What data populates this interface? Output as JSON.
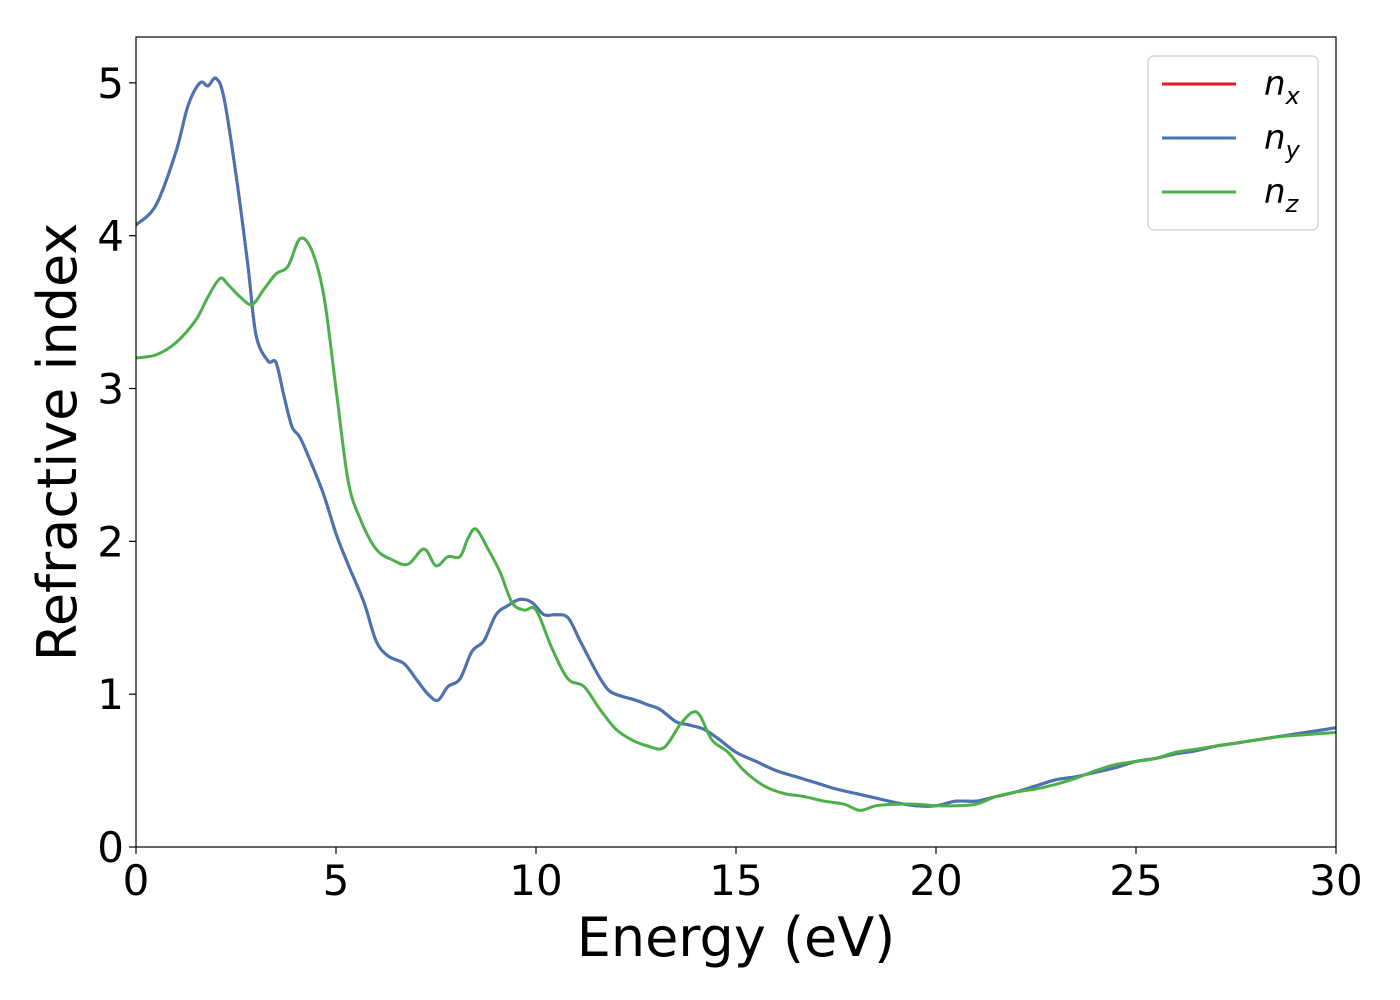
{
  "chart_data": {
    "type": "line",
    "xlabel": "Energy (eV)",
    "ylabel": "Refractive index",
    "xlim": [
      0,
      30
    ],
    "ylim": [
      0,
      5.3
    ],
    "grid": false,
    "legend_placement": "top-right",
    "x_ticks": [
      "0",
      "5",
      "10",
      "15",
      "20",
      "25",
      "30"
    ],
    "y_ticks": [
      "0",
      "1",
      "2",
      "3",
      "4",
      "5"
    ],
    "series": [
      {
        "name": "n",
        "subscript": "x",
        "color": "#e41a1c",
        "x": [
          0,
          0.5,
          1.0,
          1.3,
          1.6,
          1.8,
          2.0,
          2.2,
          2.5,
          2.8,
          3.0,
          3.3,
          3.5,
          3.7,
          3.9,
          4.1,
          4.4,
          4.7,
          5.0,
          5.3,
          5.7,
          6.0,
          6.3,
          6.7,
          7.0,
          7.3,
          7.55,
          7.8,
          8.1,
          8.4,
          8.7,
          9.0,
          9.3,
          9.6,
          9.9,
          10.2,
          10.5,
          10.8,
          11.1,
          11.5,
          11.8,
          12.1,
          12.5,
          12.8,
          13.1,
          13.5,
          13.8,
          14.2,
          14.6,
          15.0,
          15.5,
          16.0,
          16.5,
          17.0,
          17.5,
          18.0,
          18.5,
          19.0,
          19.5,
          20.0,
          20.5,
          21.0,
          21.5,
          22.0,
          22.5,
          23.0,
          23.5,
          24.0,
          24.5,
          25.0,
          25.5,
          26.0,
          26.5,
          27.0,
          27.5,
          28.0,
          28.5,
          29.0,
          29.5,
          30.0
        ],
        "y": [
          4.07,
          4.2,
          4.55,
          4.85,
          5.0,
          4.98,
          5.03,
          4.9,
          4.4,
          3.8,
          3.35,
          3.18,
          3.17,
          2.95,
          2.75,
          2.68,
          2.5,
          2.3,
          2.05,
          1.85,
          1.6,
          1.35,
          1.25,
          1.2,
          1.1,
          1.0,
          0.96,
          1.05,
          1.1,
          1.28,
          1.35,
          1.52,
          1.58,
          1.62,
          1.6,
          1.52,
          1.52,
          1.5,
          1.35,
          1.15,
          1.03,
          0.99,
          0.96,
          0.93,
          0.9,
          0.82,
          0.8,
          0.77,
          0.7,
          0.62,
          0.56,
          0.5,
          0.46,
          0.42,
          0.38,
          0.35,
          0.32,
          0.29,
          0.27,
          0.27,
          0.3,
          0.3,
          0.33,
          0.36,
          0.4,
          0.44,
          0.46,
          0.49,
          0.52,
          0.56,
          0.58,
          0.61,
          0.63,
          0.66,
          0.68,
          0.7,
          0.72,
          0.74,
          0.76,
          0.78
        ]
      },
      {
        "name": "n",
        "subscript": "y",
        "color": "#4575b4",
        "x": [
          0,
          0.5,
          1.0,
          1.3,
          1.6,
          1.8,
          2.0,
          2.2,
          2.5,
          2.8,
          3.0,
          3.3,
          3.5,
          3.7,
          3.9,
          4.1,
          4.4,
          4.7,
          5.0,
          5.3,
          5.7,
          6.0,
          6.3,
          6.7,
          7.0,
          7.3,
          7.55,
          7.8,
          8.1,
          8.4,
          8.7,
          9.0,
          9.3,
          9.6,
          9.9,
          10.2,
          10.5,
          10.8,
          11.1,
          11.5,
          11.8,
          12.1,
          12.5,
          12.8,
          13.1,
          13.5,
          13.8,
          14.2,
          14.6,
          15.0,
          15.5,
          16.0,
          16.5,
          17.0,
          17.5,
          18.0,
          18.5,
          19.0,
          19.5,
          20.0,
          20.5,
          21.0,
          21.5,
          22.0,
          22.5,
          23.0,
          23.5,
          24.0,
          24.5,
          25.0,
          25.5,
          26.0,
          26.5,
          27.0,
          27.5,
          28.0,
          28.5,
          29.0,
          29.5,
          30.0
        ],
        "y": [
          4.07,
          4.2,
          4.55,
          4.85,
          5.0,
          4.98,
          5.03,
          4.9,
          4.4,
          3.8,
          3.35,
          3.18,
          3.17,
          2.95,
          2.75,
          2.68,
          2.5,
          2.3,
          2.05,
          1.85,
          1.6,
          1.35,
          1.25,
          1.2,
          1.1,
          1.0,
          0.96,
          1.05,
          1.1,
          1.28,
          1.35,
          1.52,
          1.58,
          1.62,
          1.6,
          1.52,
          1.52,
          1.5,
          1.35,
          1.15,
          1.03,
          0.99,
          0.96,
          0.93,
          0.9,
          0.82,
          0.8,
          0.77,
          0.7,
          0.62,
          0.56,
          0.5,
          0.46,
          0.42,
          0.38,
          0.35,
          0.32,
          0.29,
          0.27,
          0.27,
          0.3,
          0.3,
          0.33,
          0.36,
          0.4,
          0.44,
          0.46,
          0.49,
          0.52,
          0.56,
          0.58,
          0.61,
          0.63,
          0.66,
          0.68,
          0.7,
          0.72,
          0.74,
          0.76,
          0.78
        ]
      },
      {
        "name": "n",
        "subscript": "z",
        "color": "#4daf4a",
        "x": [
          0,
          0.5,
          1.0,
          1.5,
          1.8,
          2.1,
          2.3,
          2.6,
          2.9,
          3.2,
          3.5,
          3.8,
          4.1,
          4.4,
          4.7,
          5.0,
          5.3,
          5.6,
          6.0,
          6.4,
          6.8,
          7.2,
          7.5,
          7.8,
          8.1,
          8.3,
          8.5,
          8.8,
          9.1,
          9.4,
          9.7,
          10.0,
          10.4,
          10.8,
          11.2,
          11.6,
          12.0,
          12.4,
          12.8,
          13.2,
          13.6,
          13.9,
          14.1,
          14.4,
          14.8,
          15.2,
          15.7,
          16.2,
          16.7,
          17.2,
          17.7,
          18.1,
          18.5,
          19.0,
          19.5,
          20.0,
          20.5,
          21.0,
          21.5,
          22.0,
          22.5,
          23.0,
          23.5,
          24.0,
          24.5,
          25.0,
          25.5,
          26.0,
          26.5,
          27.0,
          27.5,
          28.0,
          28.5,
          29.0,
          29.5,
          30.0
        ],
        "y": [
          3.2,
          3.22,
          3.3,
          3.45,
          3.6,
          3.72,
          3.68,
          3.6,
          3.55,
          3.65,
          3.75,
          3.8,
          3.98,
          3.9,
          3.6,
          3.0,
          2.4,
          2.15,
          1.95,
          1.88,
          1.85,
          1.95,
          1.84,
          1.9,
          1.9,
          2.02,
          2.08,
          1.95,
          1.8,
          1.6,
          1.55,
          1.55,
          1.3,
          1.1,
          1.05,
          0.9,
          0.77,
          0.7,
          0.66,
          0.65,
          0.8,
          0.88,
          0.86,
          0.7,
          0.62,
          0.5,
          0.4,
          0.35,
          0.33,
          0.3,
          0.28,
          0.24,
          0.27,
          0.28,
          0.28,
          0.27,
          0.27,
          0.28,
          0.33,
          0.36,
          0.38,
          0.41,
          0.45,
          0.5,
          0.54,
          0.56,
          0.58,
          0.62,
          0.64,
          0.66,
          0.68,
          0.7,
          0.72,
          0.73,
          0.74,
          0.75
        ]
      }
    ]
  }
}
